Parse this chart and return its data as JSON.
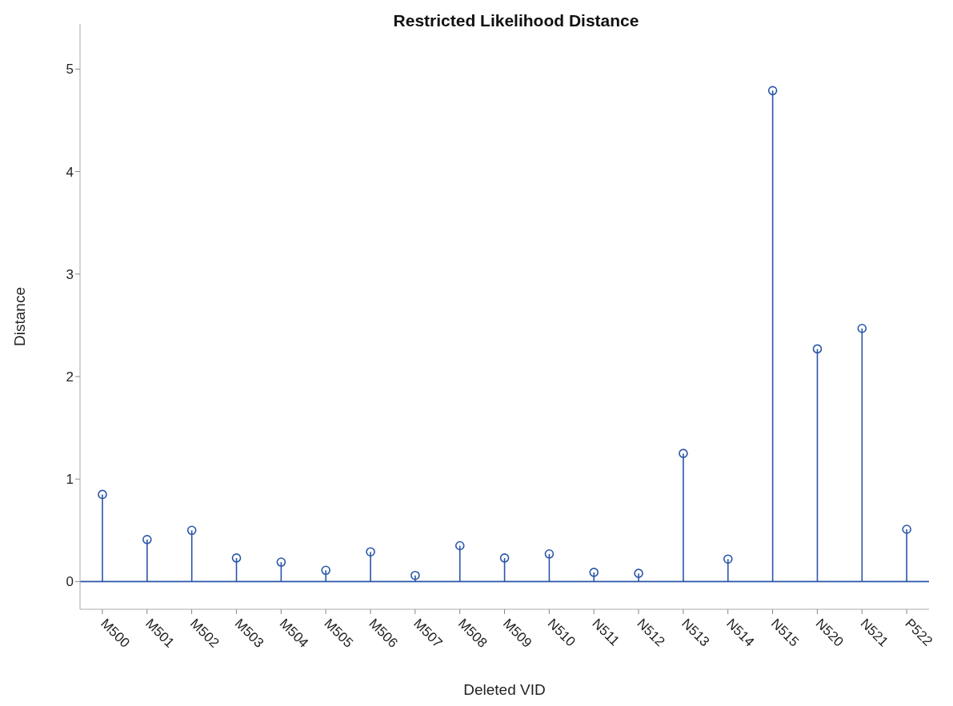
{
  "chart_data": {
    "type": "lollipop",
    "title": "Restricted Likelihood Distance",
    "xlabel": "Deleted VID",
    "ylabel": "Distance",
    "categories": [
      "M500",
      "M501",
      "M502",
      "M503",
      "M504",
      "M505",
      "M506",
      "M507",
      "M508",
      "M509",
      "N510",
      "N511",
      "N512",
      "N513",
      "N514",
      "N515",
      "N520",
      "N521",
      "P522"
    ],
    "values": [
      0.85,
      0.41,
      0.5,
      0.23,
      0.19,
      0.11,
      0.29,
      0.06,
      0.35,
      0.23,
      0.27,
      0.09,
      0.08,
      1.25,
      0.22,
      4.79,
      2.27,
      2.47,
      0.51
    ],
    "color": "#2a55a8",
    "marker": "circle",
    "ylim": [
      -0.27,
      5.44
    ],
    "yticks": [
      0,
      1,
      2,
      3,
      4,
      5
    ],
    "ref_lines": [
      {
        "axis": "y",
        "value": 0,
        "color": "#2a55a8"
      }
    ]
  }
}
